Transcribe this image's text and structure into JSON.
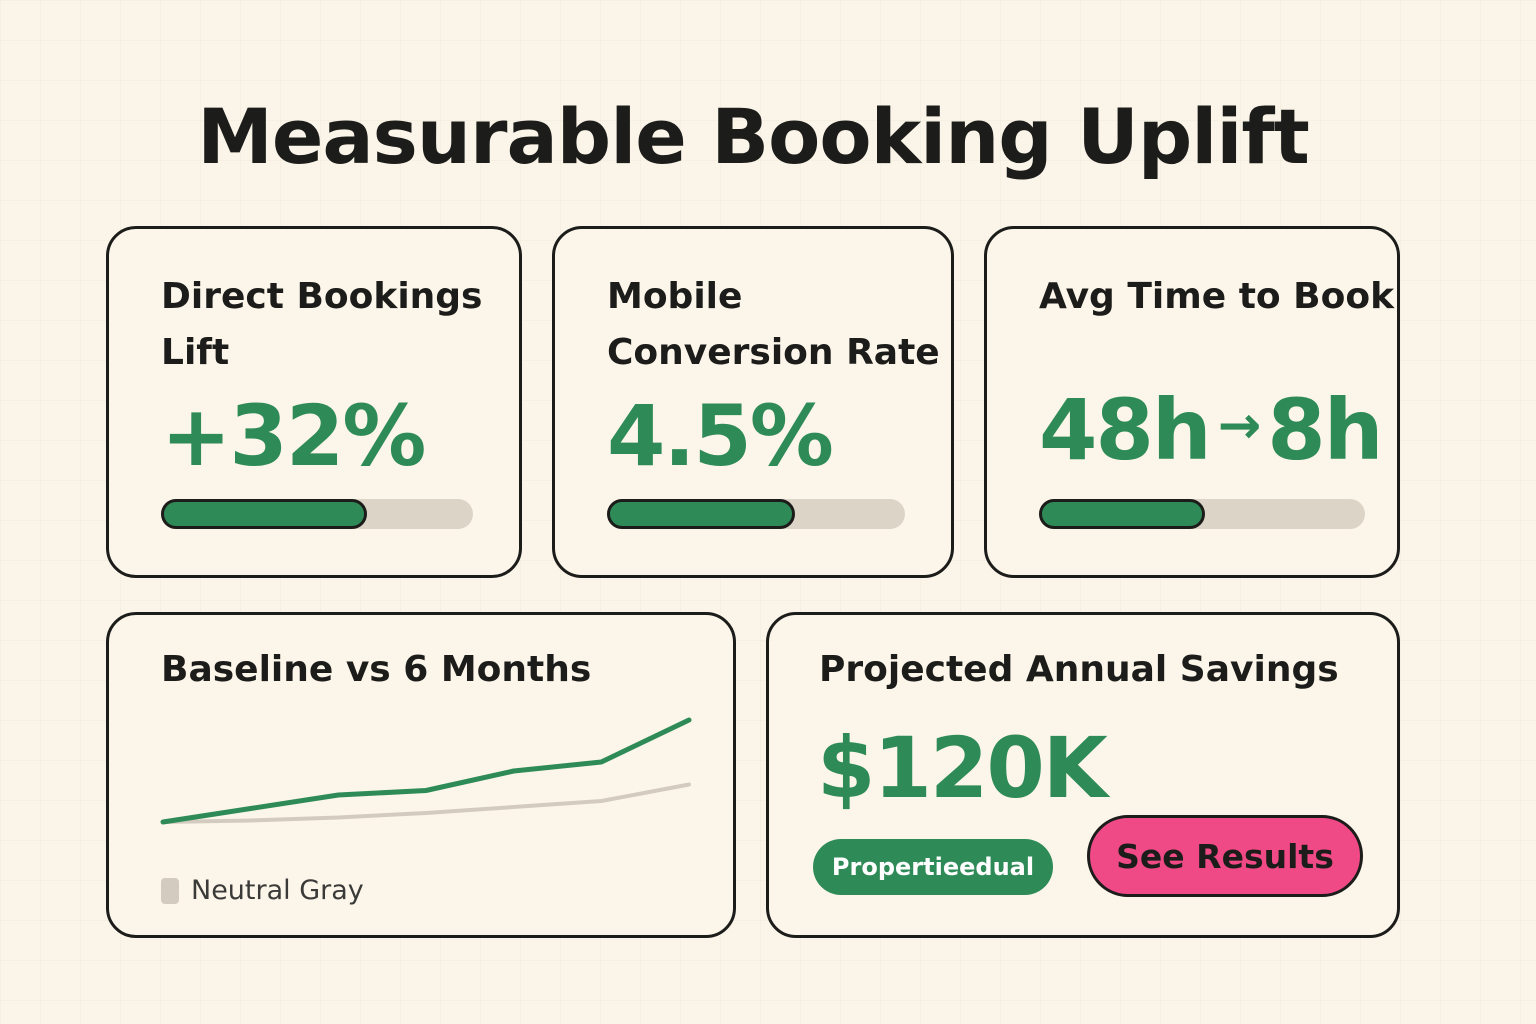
{
  "page": {
    "title": "Measurable Booking Uplift"
  },
  "metrics": [
    {
      "label": "Direct Bookings Lift",
      "value": "+32%",
      "progress": 0.66
    },
    {
      "label": "Mobile Conversion Rate",
      "value": "4.5%",
      "progress": 0.63
    },
    {
      "label": "Avg Time to Book",
      "value_before": "48h",
      "value_after": "8h",
      "progress": 0.51
    }
  ],
  "trend_chart": {
    "title": "Baseline vs 6 Months",
    "legend_label": "Neutral Gray",
    "colors": {
      "improved": "#2e8b57",
      "baseline": "#d3cbbf"
    },
    "chart_data": {
      "type": "line",
      "x": [
        0,
        1,
        2,
        3,
        4,
        5,
        6
      ],
      "series": [
        {
          "values": [
            1.0,
            1.9,
            2.8,
            3.1,
            4.4,
            5.0,
            7.8
          ],
          "color": "#2e8b57"
        },
        {
          "values": [
            1.0,
            1.1,
            1.3,
            1.6,
            2.0,
            2.4,
            3.5
          ],
          "color": "#d3cbbf"
        }
      ],
      "ylim": [
        0,
        10
      ],
      "grid": false
    }
  },
  "savings": {
    "title": "Projected Annual Savings",
    "value": "$120K",
    "pill_label": "Propertieedual",
    "cta_label": "See Results"
  },
  "theme": {
    "background": "#fbf5e9",
    "accent_green": "#2e8b57",
    "accent_pink": "#ef4a86",
    "track_gray": "#dcd4c6"
  }
}
